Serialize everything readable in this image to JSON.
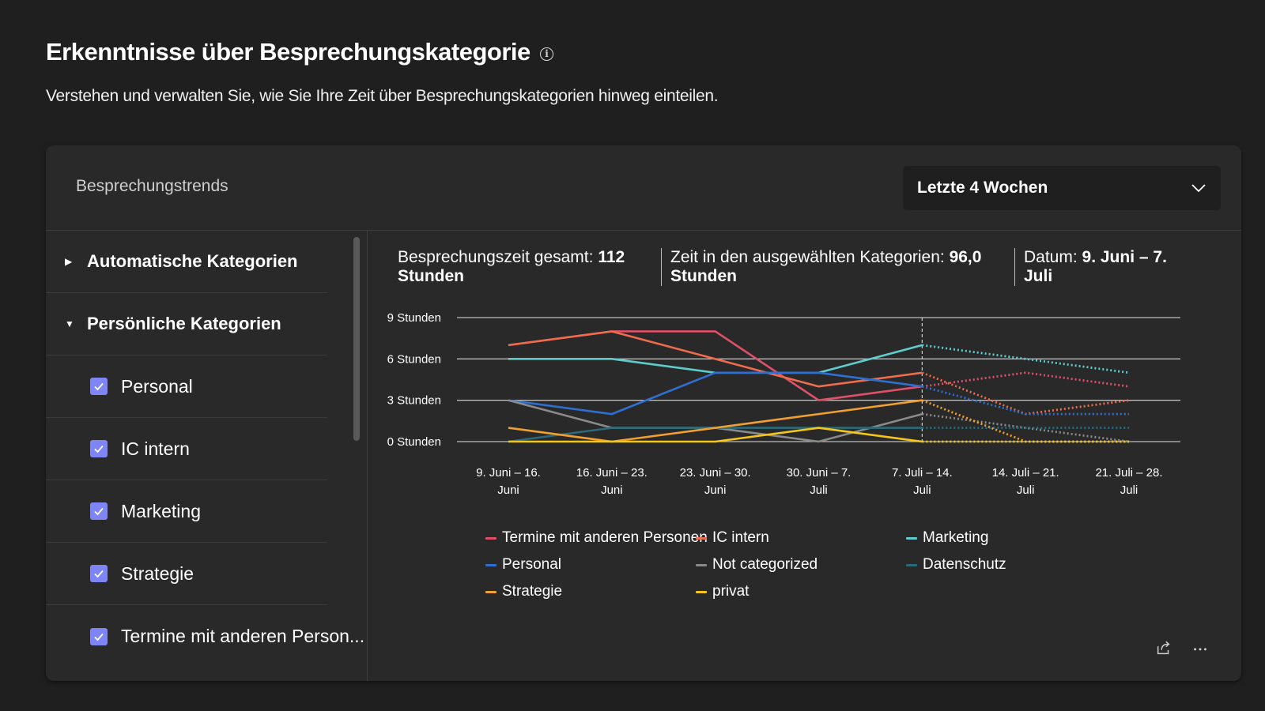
{
  "page": {
    "title": "Erkenntnisse über Besprechungskategorie",
    "subtitle": "Verstehen und verwalten Sie, wie Sie Ihre Zeit über Besprechungskategorien hinweg einteilen."
  },
  "card": {
    "title": "Besprechungstrends",
    "range_dropdown": {
      "selected": "Letzte 4 Wochen"
    }
  },
  "sidebar": {
    "groups": [
      {
        "label": "Automatische Kategorien",
        "expanded": false
      },
      {
        "label": "Persönliche Kategorien",
        "expanded": true
      }
    ],
    "items": [
      {
        "label": "Personal",
        "checked": true
      },
      {
        "label": "IC intern",
        "checked": true
      },
      {
        "label": "Marketing",
        "checked": true
      },
      {
        "label": "Strategie",
        "checked": true
      },
      {
        "label": "Termine mit anderen Person...",
        "checked": true
      }
    ]
  },
  "stats": {
    "total_label": "Besprechungszeit gesamt: ",
    "total_value": "112 Stunden",
    "selected_label": "Zeit in den ausgewählten Kategorien: ",
    "selected_value": "96,0 Stunden",
    "date_label": "Datum: ",
    "date_value": "9. Juni – 7. Juli"
  },
  "chart_data": {
    "type": "line",
    "y_ticks": [
      "9 Stunden",
      "6 Stunden",
      "3 Stunden",
      "0 Stunden"
    ],
    "y_tick_values": [
      9,
      6,
      3,
      0
    ],
    "ylim": [
      0,
      9
    ],
    "grid": true,
    "x_labels": [
      [
        "9. Juni – 16.",
        "Juni"
      ],
      [
        "16. Juni – 23.",
        "Juni"
      ],
      [
        "23. Juni – 30.",
        "Juni"
      ],
      [
        "30. Juni – 7.",
        "Juli"
      ],
      [
        "7. Juli – 14.",
        "Juli"
      ],
      [
        "14. Juli – 21.",
        "Juli"
      ],
      [
        "21. Juli – 28.",
        "Juli"
      ]
    ],
    "actual_until_index": 4,
    "legend_placement": "bottom",
    "series": [
      {
        "name": "Termine mit anderen Personen",
        "color": "#e0506a",
        "values": [
          7,
          8,
          8,
          3,
          4,
          5,
          4
        ]
      },
      {
        "name": "IC intern",
        "color": "#ee6c4d",
        "values": [
          7,
          8,
          6,
          4,
          5,
          2,
          3
        ]
      },
      {
        "name": "Marketing",
        "color": "#5fcbcb",
        "values": [
          6,
          6,
          5,
          5,
          7,
          6,
          5
        ]
      },
      {
        "name": "Personal",
        "color": "#2f6fd1",
        "values": [
          3,
          2,
          5,
          5,
          4,
          2,
          2
        ]
      },
      {
        "name": "Not categorized",
        "color": "#8a8a8a",
        "values": [
          3,
          1,
          1,
          0,
          2,
          1,
          0
        ]
      },
      {
        "name": "Datenschutz",
        "color": "#2a6a7a",
        "values": [
          0,
          1,
          1,
          1,
          1,
          1,
          1
        ]
      },
      {
        "name": "Strategie",
        "color": "#f0a030",
        "values": [
          1,
          0,
          1,
          2,
          3,
          0,
          0
        ]
      },
      {
        "name": "privat",
        "color": "#f5c518",
        "values": [
          0,
          0,
          0,
          1,
          0,
          0,
          0
        ]
      }
    ]
  },
  "icons": {
    "share": "share-icon",
    "more": "more-icon",
    "info": "info-icon",
    "chevron": "chevron-down-icon"
  },
  "accent_color": "#7f85f5"
}
